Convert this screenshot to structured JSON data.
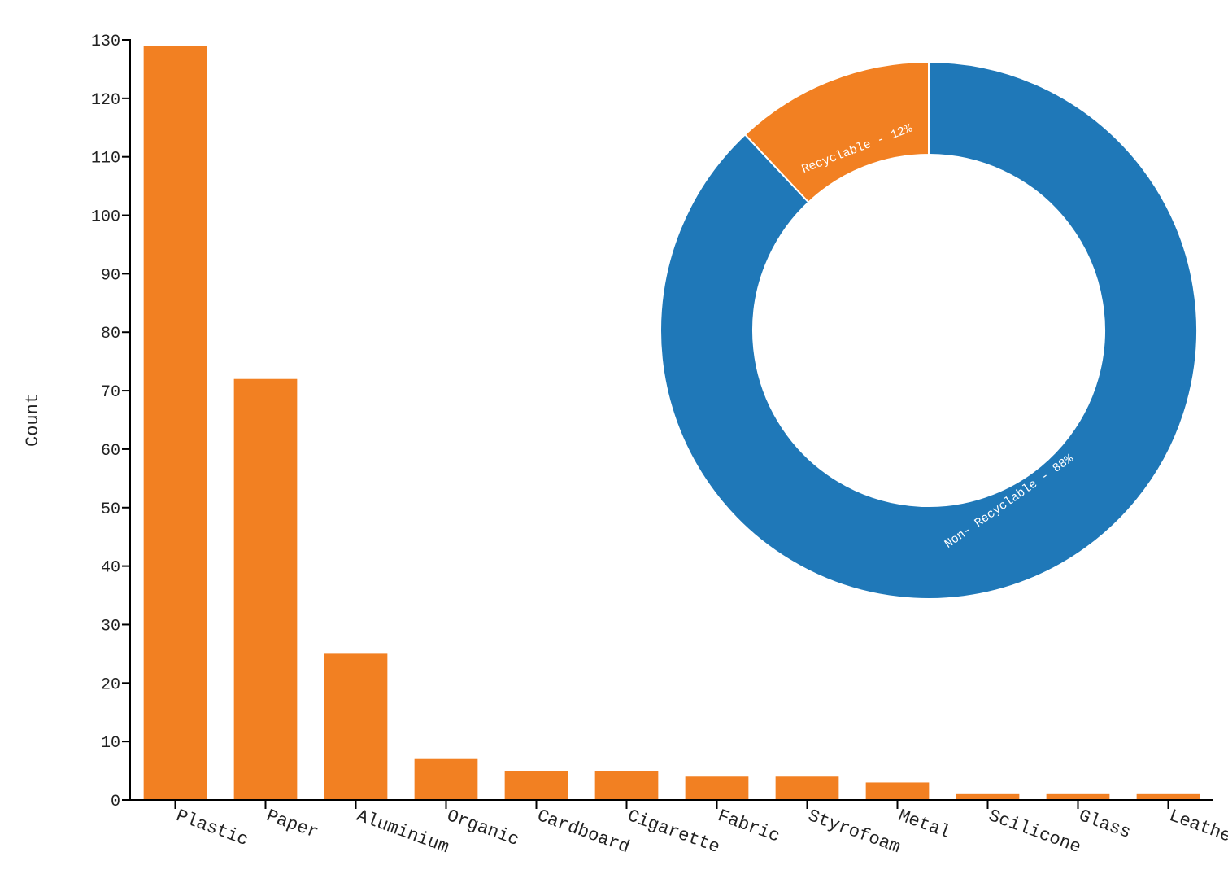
{
  "chart_data": [
    {
      "type": "bar",
      "ylabel": "Count",
      "xlabel": "",
      "ylim": [
        0,
        130
      ],
      "yticks": [
        0,
        10,
        20,
        30,
        40,
        50,
        60,
        70,
        80,
        90,
        100,
        110,
        120,
        130
      ],
      "categories": [
        "Plastic",
        "Paper",
        "Aluminium",
        "Organic",
        "Cardboard",
        "Cigarette",
        "Fabric",
        "Styrofoam",
        "Metal",
        "Scilicone",
        "Glass",
        "Leather"
      ],
      "values": [
        129,
        72,
        25,
        7,
        5,
        5,
        4,
        4,
        3,
        1,
        1,
        1
      ],
      "bar_color": "#f28022",
      "grid": false
    },
    {
      "type": "pie",
      "donut": true,
      "slices": [
        {
          "label": "Recyclable - 12%",
          "value": 12,
          "color": "#f28022"
        },
        {
          "label": "Non- Recyclable - 88%",
          "value": 88,
          "color": "#1f78b8"
        }
      ]
    }
  ]
}
